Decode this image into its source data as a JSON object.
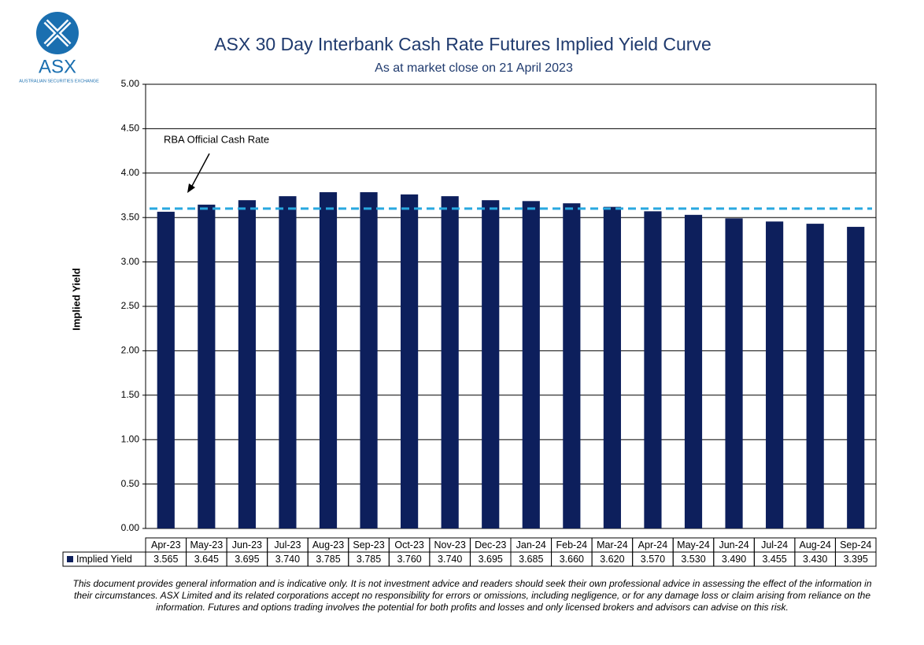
{
  "logo": {
    "name": "ASX",
    "tagline": "AUSTRALIAN SECURITIES EXCHANGE"
  },
  "chart_data": {
    "type": "bar",
    "title": "ASX 30 Day Interbank Cash Rate Futures Implied Yield Curve",
    "subtitle": "As at market close on 21 April 2023",
    "y_label": "Implied Yield",
    "categories": [
      "Apr-23",
      "May-23",
      "Jun-23",
      "Jul-23",
      "Aug-23",
      "Sep-23",
      "Oct-23",
      "Nov-23",
      "Dec-23",
      "Jan-24",
      "Feb-24",
      "Mar-24",
      "Apr-24",
      "May-24",
      "Jun-24",
      "Jul-24",
      "Aug-24",
      "Sep-24"
    ],
    "series": [
      {
        "name": "Implied Yield",
        "color": "#0d1f5c",
        "values": [
          3.565,
          3.645,
          3.695,
          3.74,
          3.785,
          3.785,
          3.76,
          3.74,
          3.695,
          3.685,
          3.66,
          3.62,
          3.57,
          3.53,
          3.49,
          3.455,
          3.43,
          3.395
        ],
        "value_labels": [
          "3.565",
          "3.645",
          "3.695",
          "3.740",
          "3.785",
          "3.785",
          "3.760",
          "3.740",
          "3.695",
          "3.685",
          "3.660",
          "3.620",
          "3.570",
          "3.530",
          "3.490",
          "3.455",
          "3.430",
          "3.395"
        ]
      }
    ],
    "reference_line": {
      "label": "RBA Official Cash Rate",
      "value": 3.6,
      "color": "#29a8e0"
    },
    "ylim": [
      0,
      5
    ],
    "yticks": [
      {
        "value": 0,
        "label": "0.00"
      },
      {
        "value": 0.5,
        "label": "0.50"
      },
      {
        "value": 1,
        "label": "1.00"
      },
      {
        "value": 1.5,
        "label": "1.50"
      },
      {
        "value": 2,
        "label": "2.00"
      },
      {
        "value": 2.5,
        "label": "2.50"
      },
      {
        "value": 3,
        "label": "3.00"
      },
      {
        "value": 3.5,
        "label": "3.50"
      },
      {
        "value": 4,
        "label": "4.00"
      },
      {
        "value": 4.5,
        "label": "4.50"
      },
      {
        "value": 5,
        "label": "5.00"
      }
    ],
    "grid": true
  },
  "disclaimer": [
    "This document provides general information and is indicative only. It is not investment advice and readers should seek their own professional advice in assessing the effect of the information in",
    "their circumstances. ASX Limited and its related corporations accept no responsibility for errors or omissions, including negligence, or for any damage loss or claim arising from reliance on the",
    "information. Futures and options trading involves the potential for both profits and losses and only licensed brokers and advisors can advise on this risk."
  ]
}
